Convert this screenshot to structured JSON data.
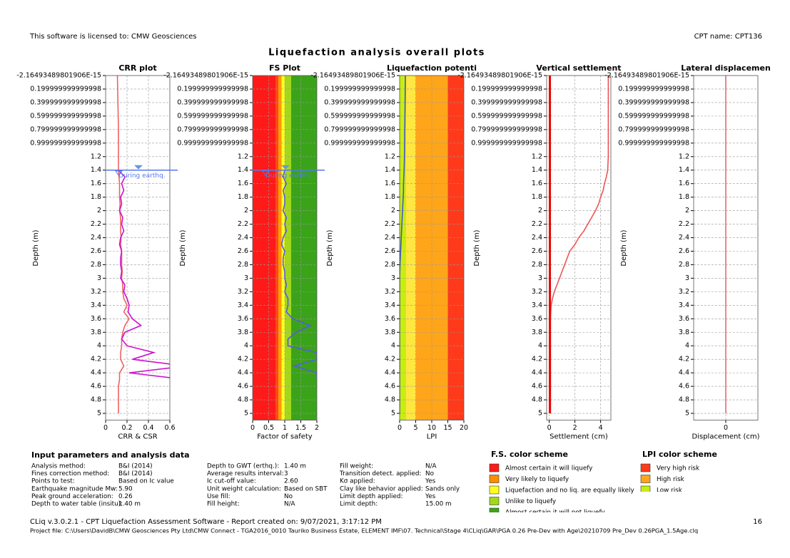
{
  "header": {
    "license": "This software is licensed to: CMW Geosciences",
    "cpt_name": "CPT136",
    "cpt_name_label": "CPT name: CPT136",
    "title": "Liquefaction analysis overall plots"
  },
  "chart_data": [
    {
      "type": "line",
      "title": "CRR plot",
      "x_label": "CRR & CSR",
      "y_label": "Depth (m)",
      "xlim": [
        0,
        0.6
      ],
      "xticks": [
        0,
        0.2,
        0.4,
        0.6
      ],
      "ylim": [
        0,
        5.1
      ],
      "yticks": [
        {
          "value": -2.16493489801906e-15,
          "label": "-2.16493489801906E-15"
        },
        0.199999999999998,
        0.399999999999998,
        0.599999999999998,
        0.799999999999998,
        0.999999999999998,
        1.2,
        1.4,
        1.6,
        1.8,
        2,
        2.2,
        2.4,
        2.6,
        2.8,
        3,
        3.2,
        3.4,
        3.6,
        3.8,
        4,
        4.2,
        4.4,
        4.6,
        4.8,
        5
      ],
      "grid": true,
      "water_table": 1.4,
      "annotation": "During earthq.",
      "depths": [
        0,
        0.4,
        0.8,
        1.2,
        1.4,
        1.5,
        1.6,
        1.7,
        1.8,
        1.9,
        2.0,
        2.1,
        2.2,
        2.3,
        2.4,
        2.5,
        2.6,
        2.7,
        2.8,
        2.9,
        3.0,
        3.1,
        3.2,
        3.3,
        3.4,
        3.5,
        3.6,
        3.7,
        3.8,
        3.9,
        4.0,
        4.1,
        4.2,
        4.3,
        4.4,
        4.5,
        4.6,
        4.7,
        4.8,
        4.9,
        5.0
      ],
      "series": [
        {
          "color": "#f06262",
          "values": [
            0.11,
            0.115,
            0.12,
            0.12,
            0.12,
            0.125,
            0.13,
            0.13,
            0.13,
            0.135,
            0.13,
            0.14,
            0.14,
            0.14,
            0.145,
            0.14,
            0.15,
            0.15,
            0.15,
            0.155,
            0.15,
            0.16,
            0.16,
            0.17,
            0.2,
            0.17,
            0.22,
            0.18,
            0.16,
            0.15,
            0.15,
            0.14,
            0.14,
            0.17,
            0.13,
            0.13,
            0.12,
            0.12,
            0.12,
            0.12,
            0.12
          ]
        },
        {
          "color": "#cc11cc",
          "values": [
            null,
            null,
            null,
            null,
            0.12,
            0.18,
            0.15,
            0.17,
            0.14,
            0.15,
            0.13,
            0.16,
            0.15,
            0.17,
            0.14,
            0.13,
            0.15,
            0.14,
            0.14,
            0.15,
            0.14,
            0.18,
            0.17,
            0.2,
            0.22,
            0.21,
            0.25,
            0.33,
            0.18,
            0.15,
            0.2,
            0.45,
            0.25,
            0.75,
            0.22,
            0.75,
            null,
            null,
            null,
            null,
            null
          ]
        }
      ]
    },
    {
      "type": "line",
      "title": "FS Plot",
      "x_label": "Factor of safety",
      "y_label": "Depth (m)",
      "xlim": [
        0,
        2
      ],
      "xticks": [
        0,
        0.5,
        1,
        1.5,
        2
      ],
      "ylim": [
        0,
        5.1
      ],
      "yticks": [
        {
          "value": -2.16493489801906e-15,
          "label": "-2.16493489801906E-15"
        },
        0.199999999999998,
        0.399999999999998,
        0.599999999999998,
        0.799999999999998,
        0.999999999999998,
        1.2,
        1.4,
        1.6,
        1.8,
        2,
        2.2,
        2.4,
        2.6,
        2.8,
        3,
        3.2,
        3.4,
        3.6,
        3.8,
        4,
        4.2,
        4.4,
        4.6,
        4.8,
        5
      ],
      "grid": true,
      "water_table": 1.4,
      "annotation": "During earthq.",
      "bands": [
        {
          "from": 0,
          "to": 0.72,
          "color": "#ff1a1a"
        },
        {
          "from": 0.72,
          "to": 0.8,
          "color": "#ff4a1a"
        },
        {
          "from": 0.8,
          "to": 0.9,
          "color": "#ff9a00"
        },
        {
          "from": 0.9,
          "to": 1.0,
          "color": "#ffff22"
        },
        {
          "from": 1.0,
          "to": 1.2,
          "color": "#a3d81a"
        },
        {
          "from": 1.2,
          "to": 2,
          "color": "#3aa31a"
        }
      ],
      "depths": [
        0,
        0.4,
        0.8,
        1.2,
        1.4,
        1.5,
        1.6,
        1.7,
        1.8,
        1.9,
        2.0,
        2.1,
        2.2,
        2.3,
        2.4,
        2.5,
        2.6,
        2.7,
        2.8,
        2.9,
        3.0,
        3.1,
        3.2,
        3.3,
        3.4,
        3.5,
        3.6,
        3.7,
        3.8,
        3.9,
        4.0,
        4.1,
        4.2,
        4.3,
        4.4,
        4.5,
        4.6,
        4.7,
        4.8,
        4.9,
        5.0
      ],
      "series": [
        {
          "color": "#5a5ae0",
          "values": [
            null,
            null,
            null,
            null,
            1.0,
            0.95,
            1.05,
            0.95,
            1.0,
            1.0,
            0.95,
            1.05,
            1.0,
            1.05,
            0.95,
            0.9,
            1.0,
            0.95,
            0.95,
            1.0,
            1.0,
            1.05,
            1.0,
            1.1,
            1.1,
            1.05,
            1.25,
            1.8,
            1.35,
            1.1,
            1.1,
            2,
            2,
            1.3,
            2,
            2,
            null,
            null,
            null,
            null,
            null
          ]
        }
      ]
    },
    {
      "type": "line",
      "title": "Liquefaction potenti",
      "x_label": "LPI",
      "y_label": "Depth (m)",
      "xlim": [
        0,
        20
      ],
      "xticks": [
        0,
        5,
        10,
        15,
        20
      ],
      "ylim": [
        0,
        5.1
      ],
      "yticks": [
        {
          "value": -2.16493489801906e-15,
          "label": "-2.16493489801906E-15"
        },
        0.199999999999998,
        0.399999999999998,
        0.599999999999998,
        0.799999999999998,
        0.999999999999998,
        1.2,
        1.4,
        1.6,
        1.8,
        2,
        2.2,
        2.4,
        2.6,
        2.8,
        3,
        3.2,
        3.4,
        3.6,
        3.8,
        4,
        4.2,
        4.4,
        4.6,
        4.8,
        5
      ],
      "grid": true,
      "bands": [
        {
          "from": 0,
          "to": 2,
          "color": "#c8ee10"
        },
        {
          "from": 2,
          "to": 5,
          "color": "#ffe640"
        },
        {
          "from": 5,
          "to": 15,
          "color": "#ffa51a"
        },
        {
          "from": 15,
          "to": 20,
          "color": "#ff3a1a"
        }
      ],
      "depths": [
        0,
        0.4,
        0.8,
        1.2,
        1.4,
        1.5,
        1.6,
        1.7,
        1.8,
        1.9,
        2.0,
        2.1,
        2.2,
        2.3,
        2.4,
        2.5,
        2.6,
        2.7,
        2.8,
        2.9,
        3.0,
        3.1,
        3.2,
        3.3,
        3.4,
        3.5,
        3.6,
        3.7,
        3.8,
        3.9,
        4.0,
        4.1,
        4.2,
        4.3,
        4.4,
        4.5,
        4.6,
        4.7,
        4.8,
        4.9,
        5.0
      ],
      "series": [
        {
          "color": "#4455cc",
          "values": [
            1.8,
            1.7,
            1.6,
            1.5,
            1.4,
            1.3,
            1.2,
            1.2,
            1.1,
            1.0,
            0.9,
            0.8,
            0.7,
            0.6,
            0.5,
            0.4,
            0.3,
            0.2,
            0.1,
            0.05,
            0,
            0,
            0,
            0,
            0,
            0,
            0,
            0,
            0,
            0,
            0,
            0,
            0,
            0,
            0,
            0,
            0,
            0,
            0,
            0,
            0
          ]
        }
      ]
    },
    {
      "type": "line",
      "title": "Vertical settlement",
      "x_label": "Settlement (cm)",
      "y_label": "Depth (m)",
      "xlim": [
        -0.2,
        4.8
      ],
      "xticks": [
        0,
        2,
        4
      ],
      "ylim": [
        0,
        5.1
      ],
      "yticks": [
        {
          "value": -2.16493489801906e-15,
          "label": "-2.16493489801906E-15"
        },
        0.199999999999998,
        0.399999999999998,
        0.599999999999998,
        0.799999999999998,
        0.999999999999998,
        1.2,
        1.4,
        1.6,
        1.8,
        2,
        2.2,
        2.4,
        2.6,
        2.8,
        3,
        3.2,
        3.4,
        3.6,
        3.8,
        4,
        4.2,
        4.4,
        4.6,
        4.8,
        5
      ],
      "grid": true,
      "depths": [
        0,
        0.4,
        0.8,
        1.2,
        1.4,
        1.5,
        1.6,
        1.7,
        1.8,
        1.9,
        2.0,
        2.1,
        2.2,
        2.3,
        2.4,
        2.5,
        2.6,
        2.7,
        2.8,
        2.9,
        3.0,
        3.1,
        3.2,
        3.3,
        3.4,
        3.5,
        3.6,
        3.7,
        3.8,
        3.9,
        4.0,
        4.1,
        4.2,
        4.3,
        4.4,
        4.5,
        4.6,
        4.7,
        4.8,
        4.9,
        5.0
      ],
      "series": [
        {
          "color": "#ee5555",
          "values": [
            4.6,
            4.6,
            4.6,
            4.6,
            4.55,
            4.45,
            4.3,
            4.2,
            4.0,
            3.85,
            3.6,
            3.3,
            3.0,
            2.7,
            2.3,
            2.0,
            1.6,
            1.4,
            1.2,
            1.0,
            0.8,
            0.6,
            0.4,
            0.25,
            0.15,
            0.12,
            0.1,
            0.1,
            0.1,
            0.1,
            0.1,
            0.1,
            0.1,
            0.1,
            0.1,
            0.1,
            0.1,
            0.1,
            0.1,
            0.1,
            0.1
          ]
        },
        {
          "color": "#ee0000",
          "values": [
            0.05,
            0.05,
            0.05,
            0.05,
            0.05,
            0.05,
            0.05,
            0.05,
            0.05,
            0.05,
            0.05,
            0.05,
            0.05,
            0.05,
            0.05,
            0.05,
            0.05,
            0.05,
            0.05,
            0.05,
            0.05,
            0.05,
            0.05,
            0.05,
            0.05,
            0.05,
            0.05,
            0.05,
            0.05,
            0.05,
            0.05,
            0.05,
            0.05,
            0.05,
            0.05,
            0.05,
            0.05,
            0.05,
            0.05,
            0.05,
            0.05
          ]
        }
      ]
    },
    {
      "type": "line",
      "title": "Lateral displacemen",
      "x_label": "Displacement (cm)",
      "y_label": "Depth (m)",
      "xlim": [
        -1,
        1
      ],
      "xticks": [
        0
      ],
      "ylim": [
        0,
        5.1
      ],
      "yticks": [
        {
          "value": -2.16493489801906e-15,
          "label": "-2.16493489801906E-15"
        },
        0.199999999999998,
        0.399999999999998,
        0.599999999999998,
        0.799999999999998,
        0.999999999999998,
        1.2,
        1.4,
        1.6,
        1.8,
        2,
        2.2,
        2.4,
        2.6,
        2.8,
        3,
        3.2,
        3.4,
        3.6,
        3.8,
        4,
        4.2,
        4.4,
        4.6,
        4.8,
        5
      ],
      "grid": true,
      "depths": [
        0,
        5.0
      ],
      "series": [
        {
          "color": "#ee6666",
          "values": [
            0,
            0
          ]
        }
      ]
    }
  ],
  "parameters": {
    "title": "Input parameters and analysis data",
    "columns": [
      [
        [
          "Analysis method:",
          "B&I (2014)"
        ],
        [
          "Fines correction method:",
          "B&I (2014)"
        ],
        [
          "Points to test:",
          "Based on Ic value"
        ],
        [
          "Earthquake magnitude Mw:",
          "5.90"
        ],
        [
          "Peak ground acceleration:",
          "0.26"
        ],
        [
          "Depth to water table (insitu):",
          "1.40 m"
        ]
      ],
      [
        [
          "Depth to GWT (erthq.):",
          "1.40 m"
        ],
        [
          "Average results interval:",
          "3"
        ],
        [
          "Ic cut-off value:",
          "2.60"
        ],
        [
          "Unit weight calculation:",
          "Based on SBT"
        ],
        [
          "Use fill:",
          "No"
        ],
        [
          "Fill height:",
          "N/A"
        ]
      ],
      [
        [
          "Fill weight:",
          "N/A"
        ],
        [
          "Transition detect. applied:",
          "No"
        ],
        [
          "Kσ applied:",
          "Yes"
        ],
        [
          "Clay like behavior applied:",
          "Sands only"
        ],
        [
          "Limit depth applied:",
          "Yes"
        ],
        [
          "Limit depth:",
          "15.00 m"
        ]
      ]
    ]
  },
  "fs_color_scheme": {
    "title": "F.S. color scheme",
    "items": [
      {
        "label": "Almost certain it will liquefy",
        "color": "#ff1a1a"
      },
      {
        "label": "Very likely to liquefy",
        "color": "#ff8c00"
      },
      {
        "label": "Liquefaction and no liq. are equally likely",
        "color": "#ffff22"
      },
      {
        "label": "Unlike to liquefy",
        "color": "#a3d81a"
      },
      {
        "label": "Almost certain it will not liquefy",
        "color": "#3aa31a"
      }
    ]
  },
  "lpi_color_scheme": {
    "title": "LPI color scheme",
    "items": [
      {
        "label": "Very high risk",
        "color": "#ff3a1a"
      },
      {
        "label": "High risk",
        "color": "#ffa51a"
      },
      {
        "label": "Low risk",
        "color": "#c8ee10"
      }
    ]
  },
  "footer": {
    "software": "CLiq v.3.0.2.1 - CPT Liquefaction Assessment Software - Report created on: 9/07/2021, 3:17:12 PM",
    "page": "16",
    "project": "Project file: C:\\Users\\DavidB\\CMW Geosciences Pty Ltd\\CMW Connect - TGA2016_0010 Tauriko Business Estate, ELEMENT IMF\\07. Technical\\Stage 4\\CLiq\\GAR\\PGA 0.26 Pre-Dev with Age\\20210709 Pre_Dev 0.26PGA_1.5Age.clq"
  }
}
